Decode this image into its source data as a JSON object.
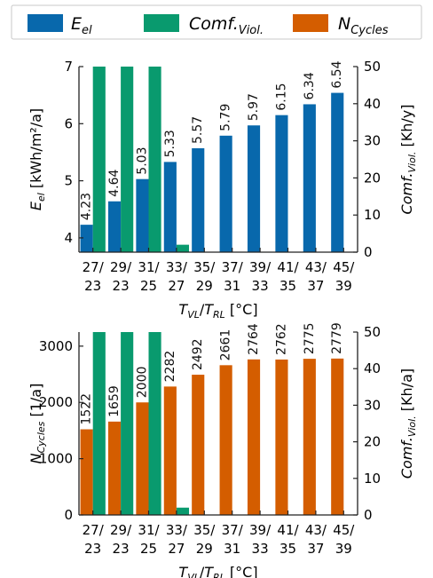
{
  "legend": {
    "items": [
      {
        "base": "E",
        "sub": "el",
        "color": "#0868ac"
      },
      {
        "base": "Comf.",
        "sub": "Viol.",
        "color": "#099a6e"
      },
      {
        "base": "N",
        "sub": "Cycles",
        "color": "#d45d00"
      }
    ]
  },
  "chart_data": [
    {
      "type": "bar",
      "categories": [
        [
          "27/",
          "23"
        ],
        [
          "29/",
          "23"
        ],
        [
          "31/",
          "25"
        ],
        [
          "33/",
          "27"
        ],
        [
          "35/",
          "29"
        ],
        [
          "37/",
          "31"
        ],
        [
          "39/",
          "33"
        ],
        [
          "41/",
          "35"
        ],
        [
          "43/",
          "37"
        ],
        [
          "45/",
          "39"
        ]
      ],
      "xlabel": {
        "t1": "T",
        "s1": "VL",
        "mid": "/",
        "t2": "T",
        "s2": "RL",
        "unit": " [°C]"
      },
      "left_axis": {
        "label": {
          "base": "E",
          "sub": "el",
          "rest": " [kWh/m²/a]"
        },
        "ylim": [
          3.75,
          7.0
        ],
        "ticks": [
          "4",
          "5",
          "6",
          "7"
        ],
        "tick_values": [
          4,
          5,
          6,
          7
        ]
      },
      "right_axis": {
        "label": {
          "base": "Comf.",
          "sub": "Viol.",
          "rest": " [Kh/y]"
        },
        "ylim": [
          0,
          50
        ],
        "ticks": [
          "0",
          "10",
          "20",
          "30",
          "40",
          "50"
        ],
        "tick_values": [
          0,
          10,
          20,
          30,
          40,
          50
        ]
      },
      "series": [
        {
          "name": "E_el",
          "axis": "left",
          "color": "#0868ac",
          "values": [
            4.23,
            4.64,
            5.03,
            5.33,
            5.57,
            5.79,
            5.97,
            6.15,
            6.34,
            6.54
          ],
          "labels": [
            "4.23",
            "4.64",
            "5.03",
            "5.33",
            "5.57",
            "5.79",
            "5.97",
            "6.15",
            "6.34",
            "6.54"
          ]
        },
        {
          "name": "Comf._Viol.",
          "axis": "right",
          "color": "#099a6e",
          "values": [
            50,
            50,
            50,
            2,
            0,
            0,
            0,
            0,
            0,
            0
          ]
        }
      ]
    },
    {
      "type": "bar",
      "categories": [
        [
          "27/",
          "23"
        ],
        [
          "29/",
          "23"
        ],
        [
          "31/",
          "25"
        ],
        [
          "33/",
          "27"
        ],
        [
          "35/",
          "29"
        ],
        [
          "37/",
          "31"
        ],
        [
          "39/",
          "33"
        ],
        [
          "41/",
          "35"
        ],
        [
          "43/",
          "37"
        ],
        [
          "45/",
          "39"
        ]
      ],
      "xlabel": {
        "t1": "T",
        "s1": "VL",
        "mid": "/",
        "t2": "T",
        "s2": "RL",
        "unit": " [°C]"
      },
      "left_axis": {
        "label": {
          "base": "N",
          "sub": "Cycles",
          "rest": " [1/a]"
        },
        "ylim": [
          0,
          3250
        ],
        "ticks": [
          "0",
          "1000",
          "2000",
          "3000"
        ],
        "tick_values": [
          0,
          1000,
          2000,
          3000
        ]
      },
      "right_axis": {
        "label": {
          "base": "Comf.",
          "sub": "Viol.",
          "rest": " [Kh/a]"
        },
        "ylim": [
          0,
          50
        ],
        "ticks": [
          "0",
          "10",
          "20",
          "30",
          "40",
          "50"
        ],
        "tick_values": [
          0,
          10,
          20,
          30,
          40,
          50
        ]
      },
      "series": [
        {
          "name": "N_Cycles",
          "axis": "left",
          "color": "#d45d00",
          "values": [
            1522,
            1659,
            2000,
            2282,
            2492,
            2661,
            2764,
            2762,
            2775,
            2779
          ],
          "labels": [
            "1522",
            "1659",
            "2000",
            "2282",
            "2492",
            "2661",
            "2764",
            "2762",
            "2775",
            "2779"
          ]
        },
        {
          "name": "Comf._Viol.",
          "axis": "right",
          "color": "#099a6e",
          "values": [
            50,
            50,
            50,
            2,
            0,
            0,
            0,
            0,
            0,
            0
          ]
        }
      ]
    }
  ]
}
